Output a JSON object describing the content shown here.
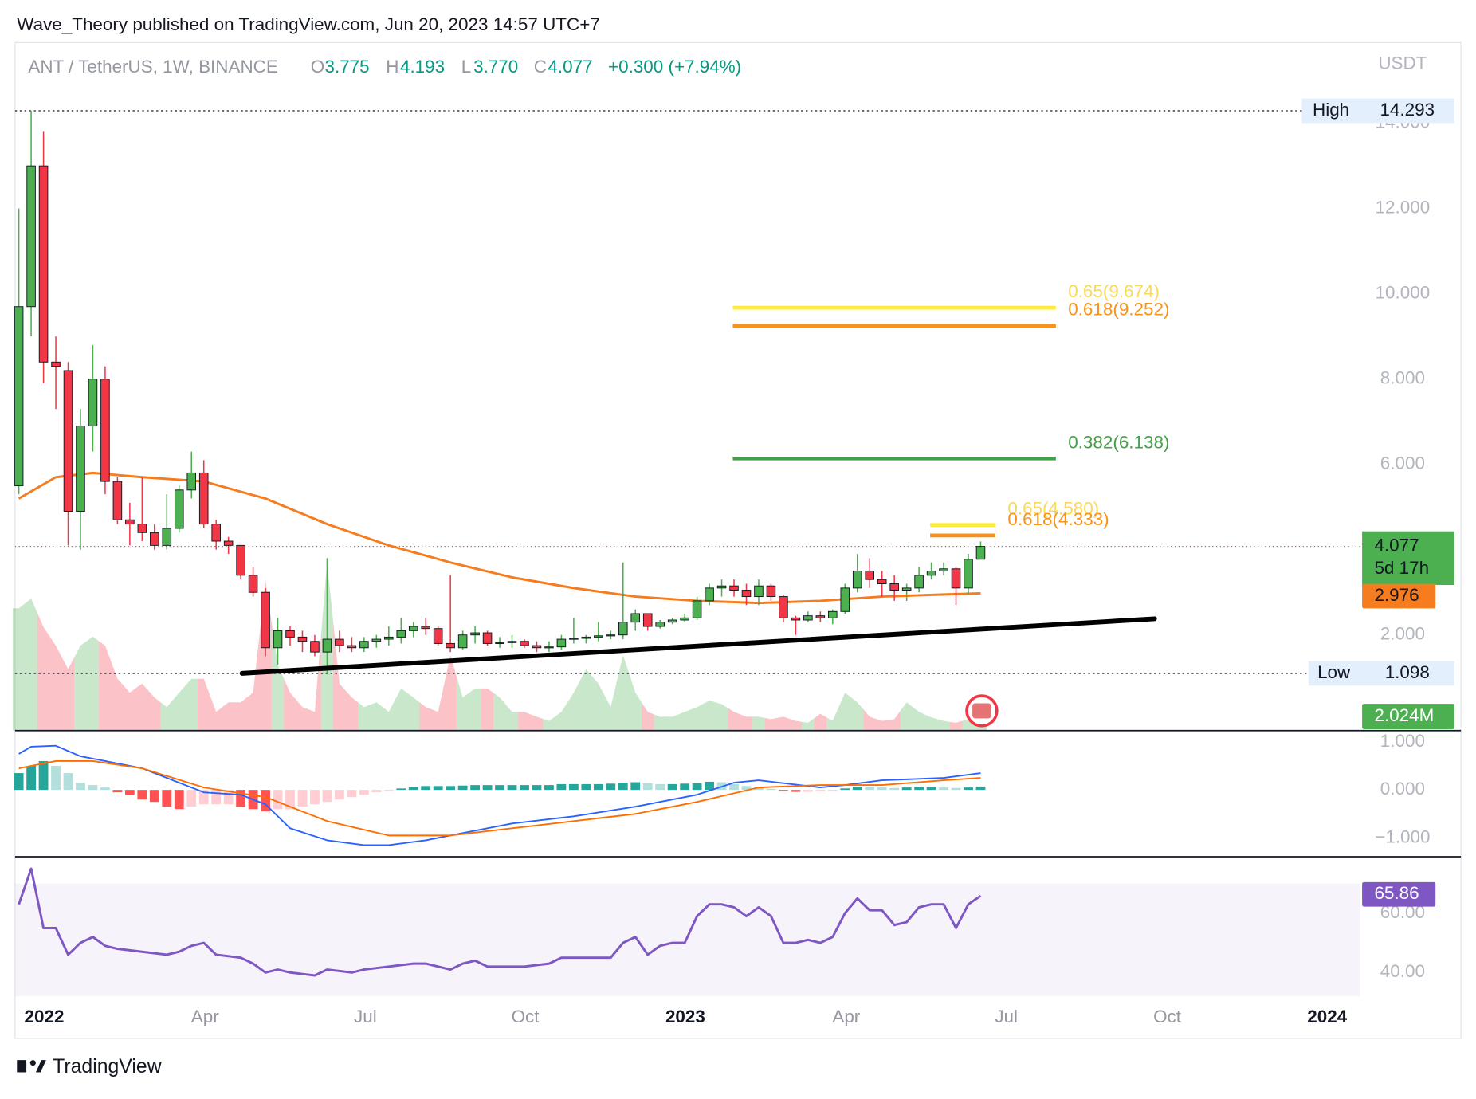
{
  "chart_data": {
    "type": "candlestick",
    "header": "Wave_Theory published on TradingView.com, Jun 20, 2023 14:57 UTC+7",
    "symbol": "ANT / TetherUS, 1W, BINANCE",
    "legend_values": [
      {
        "key": "O",
        "text": "3.775"
      },
      {
        "key": "H",
        "text": "4.193"
      },
      {
        "key": "L",
        "text": "3.770"
      },
      {
        "key": "C",
        "text": "4.077"
      }
    ],
    "change": "+0.300 (+7.94%)",
    "unit": "USDT",
    "footer": "TradingView",
    "xlim": [
      -0.305,
      108.78
    ],
    "xticks": [
      {
        "value": 2.06,
        "label": "2022"
      },
      {
        "value": 15.1,
        "label": "Apr"
      },
      {
        "value": 28.1,
        "label": "Jul"
      },
      {
        "value": 41.07,
        "label": "Oct"
      },
      {
        "value": 54.05,
        "label": "2023"
      },
      {
        "value": 67.1,
        "label": "Apr"
      },
      {
        "value": 80.08,
        "label": "Jul"
      },
      {
        "value": 93.13,
        "label": "Oct"
      },
      {
        "value": 106.1,
        "label": "2024"
      }
    ],
    "ylim": [
      -0.243,
      15.894
    ],
    "yticks": [
      {
        "value": 2,
        "label": "2.000"
      },
      {
        "value": 6,
        "label": "6.000"
      },
      {
        "value": 8,
        "label": "8.000"
      },
      {
        "value": 10,
        "label": "10.000"
      },
      {
        "value": 12,
        "label": "12.000"
      },
      {
        "value": 14,
        "label": "14.000"
      }
    ],
    "grid": false,
    "up_color": "#4caf50",
    "down_color": "#f23645",
    "candles": {
      "open": [
        5.5,
        9.7,
        13.0,
        8.4,
        8.2,
        4.9,
        6.9,
        8.0,
        5.6,
        4.7,
        4.6,
        4.4,
        4.1,
        4.5,
        5.4,
        5.8,
        4.6,
        4.2,
        4.1,
        3.4,
        3.0,
        1.7,
        2.1,
        1.95,
        1.85,
        1.6,
        1.9,
        1.75,
        1.7,
        1.85,
        1.9,
        1.95,
        2.1,
        2.2,
        2.15,
        1.8,
        1.7,
        2.0,
        2.05,
        1.8,
        1.82,
        1.85,
        1.75,
        1.7,
        1.72,
        1.9,
        1.92,
        1.95,
        1.98,
        2.0,
        2.3,
        2.5,
        2.2,
        2.3,
        2.35,
        2.4,
        2.8,
        3.1,
        3.15,
        3.05,
        2.9,
        3.15,
        2.9,
        2.4,
        2.35,
        2.45,
        2.4,
        2.55,
        3.1,
        3.5,
        3.3,
        3.2,
        3.05,
        3.1,
        3.4,
        3.5,
        3.55,
        3.1,
        3.775
      ],
      "high": [
        12.0,
        14.293,
        13.8,
        9.0,
        8.4,
        7.3,
        8.8,
        8.3,
        5.7,
        5.1,
        5.7,
        4.6,
        5.3,
        5.5,
        6.3,
        6.1,
        4.7,
        4.3,
        4.1,
        3.6,
        3.1,
        2.4,
        2.2,
        2.1,
        2.0,
        3.8,
        2.1,
        1.95,
        1.95,
        2.0,
        2.2,
        2.4,
        2.3,
        2.4,
        2.2,
        3.4,
        2.1,
        2.2,
        2.1,
        1.95,
        2.0,
        1.9,
        1.85,
        1.85,
        2.0,
        2.4,
        2.0,
        2.3,
        2.1,
        3.7,
        2.6,
        2.5,
        2.35,
        2.4,
        2.5,
        2.9,
        3.2,
        3.3,
        3.3,
        3.2,
        3.3,
        3.2,
        2.95,
        2.45,
        2.55,
        2.55,
        2.6,
        3.2,
        3.9,
        3.8,
        3.5,
        3.4,
        3.2,
        3.6,
        3.7,
        3.7,
        3.6,
        3.9,
        4.193
      ],
      "low": [
        5.3,
        9.0,
        7.9,
        7.3,
        4.1,
        4.0,
        6.3,
        5.3,
        4.6,
        4.1,
        4.2,
        4.0,
        4.0,
        4.4,
        5.2,
        4.5,
        4.0,
        3.9,
        3.3,
        2.9,
        1.5,
        1.3,
        1.75,
        1.6,
        1.5,
        1.098,
        1.6,
        1.6,
        1.6,
        1.7,
        1.75,
        1.8,
        1.95,
        2.0,
        1.75,
        1.6,
        1.65,
        1.8,
        1.75,
        1.7,
        1.7,
        1.7,
        1.6,
        1.6,
        1.65,
        1.8,
        1.8,
        1.85,
        1.9,
        1.9,
        2.1,
        2.1,
        2.15,
        2.25,
        2.3,
        2.35,
        2.7,
        2.9,
        2.9,
        2.7,
        2.7,
        2.8,
        2.3,
        2.0,
        2.3,
        2.3,
        2.25,
        2.5,
        3.0,
        3.1,
        2.9,
        2.8,
        2.8,
        3.0,
        3.3,
        3.4,
        2.7,
        2.95,
        3.77
      ],
      "close": [
        9.7,
        13.0,
        8.4,
        8.3,
        4.9,
        6.9,
        8.0,
        5.6,
        4.7,
        4.6,
        4.4,
        4.1,
        4.5,
        5.4,
        5.8,
        4.6,
        4.2,
        4.1,
        3.4,
        3.0,
        1.7,
        2.1,
        1.95,
        1.85,
        1.6,
        1.9,
        1.75,
        1.7,
        1.85,
        1.9,
        1.95,
        2.1,
        2.2,
        2.15,
        1.8,
        1.7,
        2.0,
        2.05,
        1.8,
        1.82,
        1.85,
        1.75,
        1.7,
        1.72,
        1.9,
        1.92,
        1.95,
        1.98,
        2.0,
        2.3,
        2.5,
        2.2,
        2.3,
        2.35,
        2.4,
        2.8,
        3.1,
        3.15,
        3.05,
        2.9,
        3.15,
        2.9,
        2.4,
        2.35,
        2.45,
        2.4,
        2.55,
        3.1,
        3.5,
        3.3,
        3.2,
        3.05,
        3.1,
        3.4,
        3.5,
        3.55,
        3.1,
        3.775,
        4.077
      ]
    },
    "countdown": "5d 17h",
    "volume": {
      "values": [
        20.3,
        21.9,
        17.2,
        14.1,
        10.2,
        14.1,
        15.6,
        14.1,
        8.6,
        6.3,
        7.8,
        5.5,
        3.9,
        6.3,
        8.6,
        8.6,
        3.1,
        4.7,
        4.7,
        6.3,
        25.0,
        10.9,
        6.3,
        3.9,
        3.1,
        28.1,
        7.8,
        5.5,
        3.9,
        4.7,
        3.1,
        7.0,
        5.5,
        3.9,
        3.1,
        12.5,
        5.5,
        7.0,
        7.0,
        5.5,
        3.1,
        3.1,
        2.3,
        1.6,
        3.1,
        6.3,
        10.2,
        7.8,
        3.9,
        12.5,
        6.3,
        3.1,
        2.3,
        2.3,
        3.1,
        3.9,
        5.0,
        4.4,
        3.1,
        2.3,
        2.3,
        1.9,
        2.3,
        1.6,
        1.3,
        2.8,
        1.6,
        6.3,
        4.7,
        2.3,
        1.6,
        1.9,
        4.7,
        3.1,
        2.2,
        1.6,
        1.3,
        1.9,
        2.024
      ],
      "value_label": "2.024M"
    },
    "ma": {
      "color": "#f57c1f",
      "x": [
        0,
        3,
        6,
        10,
        15,
        20,
        25,
        30,
        35,
        40,
        45,
        50,
        55,
        60,
        65,
        70,
        75,
        78
      ],
      "values": [
        5.2,
        5.7,
        5.8,
        5.7,
        5.6,
        5.2,
        4.6,
        4.1,
        3.7,
        3.35,
        3.1,
        2.9,
        2.8,
        2.75,
        2.8,
        2.9,
        2.95,
        2.976
      ]
    },
    "high_line": {
      "label": "High",
      "value": 14.293
    },
    "low_line": {
      "label": "Low",
      "value": 1.098
    },
    "fib": [
      {
        "label": "0.65(9.674)",
        "price": 9.674,
        "color": "#ffeb3b",
        "x": [
          57.9,
          84.1
        ]
      },
      {
        "label": "0.618(9.252)",
        "price": 9.252,
        "color": "#f7931a",
        "x": [
          57.9,
          84.1
        ]
      },
      {
        "label": "0.382(6.138)",
        "price": 6.138,
        "color": "#43a047",
        "x": [
          57.9,
          84.1
        ]
      },
      {
        "label": "0.65(4.580)",
        "price": 4.58,
        "color": "#ffeb3b",
        "x": [
          73.9,
          79.2
        ]
      },
      {
        "label": "0.618(4.333)",
        "price": 4.333,
        "color": "#f7931a",
        "x": [
          73.9,
          79.2
        ]
      }
    ],
    "trendline": {
      "x": [
        18.1,
        92.1
      ],
      "values": [
        1.1,
        2.38
      ]
    },
    "macd": {
      "ylim": [
        -1.392,
        1.235
      ],
      "yticks": [
        {
          "value": 1,
          "label": "1.000"
        },
        {
          "value": 0,
          "label": "0.000"
        },
        {
          "value": -1,
          "label": "−1.000"
        }
      ],
      "macd": {
        "color": "#2962ff",
        "x": [
          0,
          1,
          3,
          5,
          7,
          10,
          13,
          15,
          18,
          20,
          22,
          25,
          28,
          30,
          33,
          36,
          40,
          45,
          50,
          55,
          58,
          60,
          65,
          67,
          70,
          75,
          78
        ],
        "values": [
          0.75,
          0.9,
          0.92,
          0.7,
          0.6,
          0.45,
          0.15,
          -0.05,
          -0.1,
          -0.3,
          -0.8,
          -1.05,
          -1.15,
          -1.15,
          -1.05,
          -0.9,
          -0.7,
          -0.55,
          -0.35,
          -0.1,
          0.15,
          0.2,
          0.05,
          0.1,
          0.2,
          0.25,
          0.35
        ]
      },
      "signal": {
        "color": "#ff6d00",
        "x": [
          0,
          3,
          6,
          10,
          15,
          20,
          25,
          30,
          35,
          40,
          45,
          50,
          55,
          60,
          65,
          70,
          75,
          78
        ],
        "values": [
          0.45,
          0.6,
          0.6,
          0.45,
          0.05,
          -0.15,
          -0.65,
          -0.95,
          -0.95,
          -0.8,
          -0.65,
          -0.5,
          -0.25,
          0.05,
          0.1,
          0.1,
          0.2,
          0.25
        ]
      },
      "histogram": [
        0.35,
        0.5,
        0.6,
        0.5,
        0.35,
        0.15,
        0.1,
        0.05,
        -0.05,
        -0.1,
        -0.2,
        -0.25,
        -0.35,
        -0.4,
        -0.35,
        -0.3,
        -0.3,
        -0.3,
        -0.35,
        -0.4,
        -0.45,
        -0.4,
        -0.4,
        -0.35,
        -0.3,
        -0.25,
        -0.2,
        -0.15,
        -0.1,
        -0.05,
        -0.02,
        0.03,
        0.06,
        0.08,
        0.08,
        0.08,
        0.09,
        0.1,
        0.1,
        0.1,
        0.1,
        0.1,
        0.1,
        0.1,
        0.12,
        0.12,
        0.12,
        0.12,
        0.13,
        0.15,
        0.16,
        0.14,
        0.12,
        0.12,
        0.13,
        0.14,
        0.17,
        0.16,
        0.12,
        0.08,
        0.05,
        0.02,
        -0.02,
        -0.04,
        -0.04,
        -0.03,
        -0.02,
        0.03,
        0.07,
        0.06,
        0.05,
        0.04,
        0.05,
        0.06,
        0.06,
        0.05,
        0.04,
        0.05,
        0.07
      ]
    },
    "rsi": {
      "ylim": [
        32.06,
        79.05
      ],
      "yticks": [
        {
          "value": 40,
          "label": "40.00"
        },
        {
          "value": 60,
          "label": "60.00"
        }
      ],
      "band": [
        30,
        70
      ],
      "color": "#7e57c2",
      "x": [
        0,
        1,
        2,
        3,
        4,
        5,
        6,
        7,
        8,
        10,
        12,
        13,
        14,
        15,
        16,
        18,
        19,
        20,
        21,
        22,
        24,
        25,
        27,
        28,
        30,
        32,
        33,
        35,
        36,
        37,
        38,
        41,
        43,
        44,
        46,
        48,
        49,
        50,
        51,
        52,
        53,
        54,
        55,
        56,
        57,
        58,
        59,
        60,
        61,
        62,
        63,
        64,
        65,
        66,
        67,
        68,
        69,
        70,
        71,
        72,
        73,
        74,
        75,
        76,
        77,
        78
      ],
      "values": [
        63,
        75,
        55,
        55,
        46,
        50,
        52,
        49,
        48,
        47,
        46,
        47,
        49,
        50,
        46,
        45,
        43,
        40,
        41,
        40,
        39,
        41,
        40,
        41,
        42,
        43,
        43,
        41,
        43,
        44,
        42,
        42,
        43,
        45,
        45,
        45,
        50,
        52,
        46,
        49,
        50,
        50,
        59,
        63,
        63,
        62,
        59,
        62,
        59,
        50,
        50,
        51,
        50,
        52,
        60,
        65,
        61,
        61,
        56,
        57,
        62,
        63,
        63,
        55,
        63,
        65.86
      ]
    }
  }
}
